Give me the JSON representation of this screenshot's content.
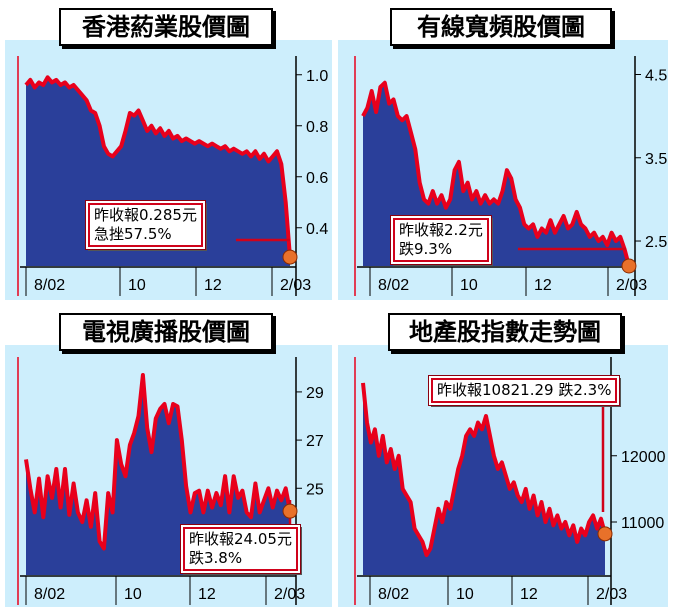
{
  "colors": {
    "panel_bg": "#cdeefc",
    "area_fill": "#2a3f9a",
    "line": "#e8001c",
    "marker": "#e8712a",
    "annotation": "#d0021b"
  },
  "chart_data": [
    {
      "type": "area",
      "title": "香港葯業股價圖",
      "x_tick_labels": [
        "8/02",
        "10",
        "12",
        "2/03"
      ],
      "y_tick_labels": [
        "1.0",
        "0.8",
        "0.6",
        "0.4"
      ],
      "ylim": [
        0.25,
        1.05
      ],
      "annotation": [
        "昨收報0.285元",
        "急挫57.5%"
      ],
      "last_value": 0.285,
      "values": [
        0.96,
        0.98,
        0.95,
        0.97,
        0.96,
        0.99,
        0.97,
        0.98,
        0.96,
        0.97,
        0.95,
        0.96,
        0.94,
        0.92,
        0.9,
        0.86,
        0.85,
        0.8,
        0.72,
        0.69,
        0.68,
        0.7,
        0.72,
        0.78,
        0.85,
        0.84,
        0.86,
        0.82,
        0.78,
        0.8,
        0.77,
        0.79,
        0.76,
        0.78,
        0.75,
        0.76,
        0.74,
        0.75,
        0.74,
        0.73,
        0.74,
        0.73,
        0.72,
        0.73,
        0.72,
        0.71,
        0.72,
        0.7,
        0.71,
        0.7,
        0.69,
        0.7,
        0.68,
        0.7,
        0.67,
        0.69,
        0.66,
        0.68,
        0.7,
        0.65,
        0.5,
        0.285
      ]
    },
    {
      "type": "area",
      "title": "有線寬頻股價圖",
      "x_tick_labels": [
        "8/02",
        "10",
        "12",
        "2/03"
      ],
      "y_tick_labels": [
        "4.5",
        "3.5",
        "2.5"
      ],
      "ylim": [
        2.2,
        4.65
      ],
      "annotation": [
        "昨收報2.2元",
        "跌9.3%"
      ],
      "last_value": 2.2,
      "values": [
        4.0,
        4.1,
        4.3,
        4.05,
        4.35,
        4.4,
        4.15,
        4.2,
        4.0,
        3.95,
        4.0,
        3.8,
        3.6,
        3.2,
        3.0,
        2.95,
        3.1,
        2.95,
        3.05,
        2.9,
        3.0,
        3.35,
        3.45,
        3.1,
        3.2,
        3.0,
        3.1,
        2.95,
        3.05,
        2.95,
        3.0,
        2.95,
        3.1,
        3.35,
        3.25,
        3.0,
        2.9,
        2.7,
        2.65,
        2.7,
        2.55,
        2.65,
        2.6,
        2.75,
        2.6,
        2.7,
        2.8,
        2.65,
        2.7,
        2.85,
        2.7,
        2.65,
        2.55,
        2.6,
        2.5,
        2.55,
        2.45,
        2.6,
        2.5,
        2.55,
        2.4,
        2.2
      ]
    },
    {
      "type": "area",
      "title": "電視廣播股價圖",
      "x_tick_labels": [
        "8/02",
        "10",
        "12",
        "2/03"
      ],
      "y_tick_labels": [
        "29",
        "27",
        "25"
      ],
      "ylim": [
        21.4,
        30.2
      ],
      "annotation": [
        "昨收報24.05元",
        "跌3.8%"
      ],
      "last_value": 24.05,
      "values": [
        26.2,
        25.0,
        24.0,
        25.4,
        23.8,
        25.5,
        24.6,
        25.8,
        24.2,
        25.8,
        23.9,
        25.2,
        24.0,
        23.6,
        24.5,
        23.4,
        24.8,
        22.8,
        22.5,
        24.8,
        24.0,
        27.0,
        26.0,
        25.5,
        26.8,
        27.3,
        28.0,
        29.7,
        27.5,
        26.5,
        27.9,
        28.3,
        28.5,
        27.7,
        28.5,
        28.4,
        27.0,
        25.1,
        24.0,
        24.8,
        24.9,
        24.0,
        24.9,
        24.2,
        24.8,
        24.3,
        25.5,
        24.0,
        25.5,
        24.6,
        24.9,
        24.0,
        23.8,
        25.2,
        24.0,
        24.5,
        25.0,
        24.2,
        24.9,
        24.5,
        25.0,
        24.05
      ]
    },
    {
      "type": "area",
      "title": "地產股指數走勢圖",
      "x_tick_labels": [
        "8/02",
        "10",
        "12",
        "2/03"
      ],
      "y_tick_labels": [
        "12000",
        "11000"
      ],
      "ylim": [
        10200,
        13400
      ],
      "annotation": [
        "昨收報10821.29 跌2.3%"
      ],
      "last_value": 10821.29,
      "values": [
        13100,
        12500,
        12200,
        12400,
        12000,
        12300,
        11900,
        12100,
        11800,
        12000,
        11500,
        11400,
        11300,
        10900,
        10800,
        10700,
        10500,
        10600,
        10900,
        11200,
        11000,
        11300,
        11200,
        11500,
        11800,
        12000,
        12300,
        12400,
        12300,
        12500,
        12400,
        12600,
        12300,
        12000,
        11800,
        11900,
        11700,
        11500,
        11600,
        11400,
        11300,
        11500,
        11200,
        11400,
        11100,
        11300,
        11000,
        11200,
        10950,
        11100,
        10900,
        11000,
        10800,
        10950,
        10700,
        10900,
        10800,
        11000,
        11100,
        10900,
        11050,
        10821.29
      ]
    }
  ]
}
